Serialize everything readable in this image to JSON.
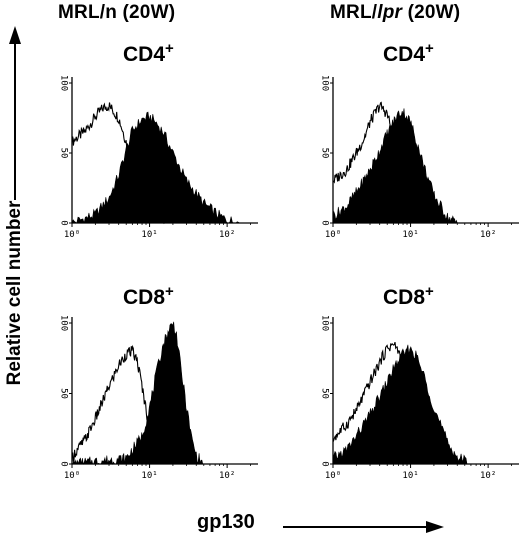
{
  "columns": [
    {
      "title_a": "MRL/n (20W)",
      "title_b": "",
      "title_c": ""
    },
    {
      "title_a": "MRL/",
      "title_b": "lpr",
      "title_c": " (20W)"
    }
  ],
  "y_axis_label": "Relative cell number",
  "x_axis_label": "gp130",
  "chart_data": [
    {
      "type": "area",
      "title": "CD4+",
      "title_base": "CD4",
      "title_sup": "+",
      "group": "MRL/n (20W)",
      "x_scale": "log",
      "xlim": [
        1,
        250
      ],
      "ylim": [
        0,
        100
      ],
      "x_tick_labels": [
        "10⁰",
        "10¹",
        "10²"
      ],
      "y_tick_labels": [
        "0",
        "50",
        "100"
      ],
      "series": [
        {
          "style": "open",
          "x": [
            1,
            1.5,
            2,
            2.5,
            3,
            4,
            5,
            6,
            8,
            10,
            15,
            20
          ],
          "y": [
            58,
            66,
            76,
            82,
            84,
            75,
            58,
            40,
            20,
            10,
            3,
            0
          ]
        },
        {
          "style": "filled",
          "x": [
            1,
            2,
            3,
            4,
            5,
            6,
            8,
            10,
            12,
            15,
            20,
            30,
            50,
            80,
            100,
            150
          ],
          "y": [
            0,
            6,
            18,
            34,
            52,
            66,
            74,
            76,
            72,
            65,
            50,
            30,
            14,
            5,
            2,
            0
          ]
        }
      ]
    },
    {
      "type": "area",
      "title": "CD4+",
      "title_base": "CD4",
      "title_sup": "+",
      "group": "MRL/lpr (20W)",
      "x_scale": "log",
      "xlim": [
        1,
        250
      ],
      "ylim": [
        0,
        100
      ],
      "x_tick_labels": [
        "10⁰",
        "10¹",
        "10²"
      ],
      "y_tick_labels": [
        "0",
        "50",
        "100"
      ],
      "series": [
        {
          "style": "open",
          "x": [
            1,
            1.5,
            2,
            2.5,
            3,
            4,
            5,
            6,
            8,
            10,
            15
          ],
          "y": [
            30,
            38,
            50,
            60,
            72,
            84,
            78,
            62,
            38,
            20,
            0
          ]
        },
        {
          "style": "filled",
          "x": [
            1,
            1.5,
            2,
            3,
            4,
            5,
            6,
            7,
            8,
            10,
            12,
            15,
            20,
            30,
            40
          ],
          "y": [
            5,
            12,
            22,
            38,
            52,
            64,
            72,
            78,
            80,
            72,
            58,
            40,
            20,
            4,
            0
          ]
        }
      ]
    },
    {
      "type": "area",
      "title": "CD8+",
      "title_base": "CD8",
      "title_sup": "+",
      "group": "MRL/n (20W)",
      "x_scale": "log",
      "xlim": [
        1,
        250
      ],
      "ylim": [
        0,
        100
      ],
      "x_tick_labels": [
        "10⁰",
        "10¹",
        "10²"
      ],
      "y_tick_labels": [
        "0",
        "50",
        "100"
      ],
      "series": [
        {
          "style": "open",
          "x": [
            1,
            1.5,
            2,
            3,
            4,
            5,
            6,
            7,
            8,
            10,
            12,
            15
          ],
          "y": [
            5,
            18,
            32,
            55,
            70,
            78,
            80,
            72,
            55,
            25,
            8,
            0
          ]
        },
        {
          "style": "filled",
          "x": [
            1,
            5,
            8,
            10,
            12,
            15,
            18,
            20,
            22,
            25,
            30,
            35,
            40,
            50
          ],
          "y": [
            0,
            4,
            20,
            40,
            62,
            85,
            96,
            100,
            94,
            70,
            40,
            18,
            6,
            0
          ]
        }
      ]
    },
    {
      "type": "area",
      "title": "CD8+",
      "title_base": "CD8",
      "title_sup": "+",
      "group": "MRL/lpr (20W)",
      "x_scale": "log",
      "xlim": [
        1,
        250
      ],
      "ylim": [
        0,
        100
      ],
      "x_tick_labels": [
        "10⁰",
        "10¹",
        "10²"
      ],
      "y_tick_labels": [
        "0",
        "50",
        "100"
      ],
      "series": [
        {
          "style": "open",
          "x": [
            1,
            1.5,
            2,
            3,
            4,
            5,
            6,
            7,
            8,
            10,
            12,
            15,
            20
          ],
          "y": [
            18,
            28,
            38,
            58,
            72,
            82,
            85,
            80,
            70,
            50,
            30,
            12,
            0
          ]
        },
        {
          "style": "filled",
          "x": [
            1,
            1.5,
            2,
            3,
            4,
            5,
            6,
            8,
            10,
            12,
            15,
            20,
            30,
            40,
            60
          ],
          "y": [
            4,
            10,
            20,
            35,
            48,
            58,
            68,
            78,
            82,
            76,
            62,
            40,
            15,
            5,
            0
          ]
        }
      ]
    }
  ]
}
